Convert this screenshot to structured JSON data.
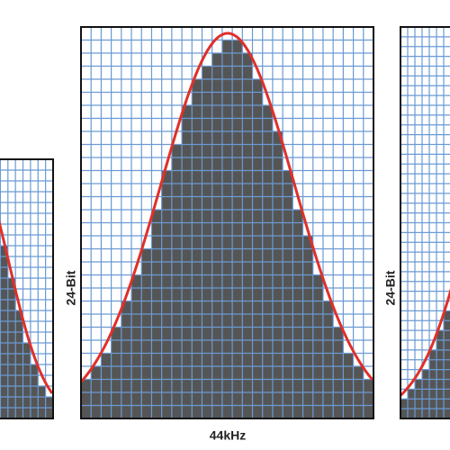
{
  "center_panel": {
    "y_label": "24-Bit",
    "x_label": "44kHz"
  },
  "right_panel": {
    "y_label": "24-Bit"
  }
}
